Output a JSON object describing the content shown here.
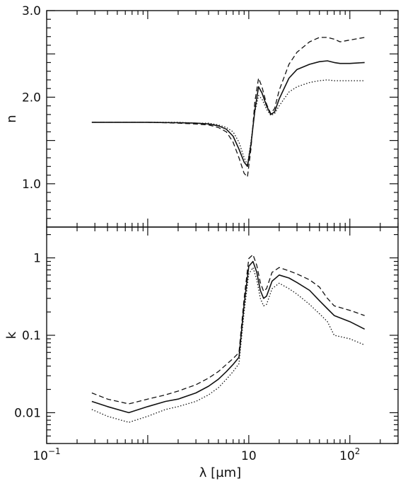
{
  "chart_data": [
    {
      "type": "line",
      "xscale": "log",
      "xlim": [
        0.1,
        300
      ],
      "ylim": [
        0.5,
        3.0
      ],
      "ylabel": "n",
      "yticks": [
        {
          "value": 1.0,
          "label": "1.0"
        },
        {
          "value": 2.0,
          "label": "2.0"
        },
        {
          "value": 3.0,
          "label": "3.0"
        }
      ],
      "series": [
        {
          "style": "solid",
          "x": [
            0.28,
            1,
            2,
            3,
            4,
            5,
            6,
            7,
            8,
            9,
            9.7,
            10.5,
            11.5,
            12.5,
            13.5,
            15,
            16.5,
            18,
            20,
            25,
            30,
            40,
            50,
            60,
            70,
            80,
            100,
            140
          ],
          "y": [
            1.71,
            1.71,
            1.705,
            1.7,
            1.69,
            1.67,
            1.63,
            1.55,
            1.4,
            1.25,
            1.2,
            1.45,
            1.85,
            2.12,
            2.05,
            1.9,
            1.8,
            1.83,
            1.98,
            2.22,
            2.32,
            2.38,
            2.41,
            2.42,
            2.4,
            2.39,
            2.39,
            2.4
          ]
        },
        {
          "style": "dashed",
          "x": [
            0.28,
            1,
            2,
            3,
            4,
            5,
            6,
            7,
            8,
            9,
            9.7,
            10.5,
            11.5,
            12.5,
            13.5,
            15,
            16.5,
            18,
            20,
            25,
            30,
            40,
            50,
            60,
            70,
            80,
            100,
            140
          ],
          "y": [
            1.71,
            1.71,
            1.7,
            1.69,
            1.68,
            1.65,
            1.6,
            1.48,
            1.3,
            1.12,
            1.08,
            1.4,
            1.95,
            2.22,
            2.12,
            1.92,
            1.81,
            1.87,
            2.08,
            2.38,
            2.52,
            2.64,
            2.69,
            2.69,
            2.67,
            2.64,
            2.66,
            2.69
          ]
        },
        {
          "style": "dotted",
          "x": [
            0.28,
            1,
            2,
            3,
            4,
            5,
            6,
            7,
            8,
            9,
            9.7,
            10.5,
            11.5,
            12.5,
            13.5,
            15,
            16.5,
            18,
            20,
            25,
            30,
            40,
            50,
            60,
            70,
            80,
            100,
            140
          ],
          "y": [
            1.71,
            1.71,
            1.71,
            1.7,
            1.7,
            1.68,
            1.65,
            1.6,
            1.48,
            1.3,
            1.22,
            1.48,
            1.83,
            2.02,
            1.98,
            1.86,
            1.79,
            1.81,
            1.9,
            2.06,
            2.12,
            2.17,
            2.19,
            2.2,
            2.19,
            2.19,
            2.19,
            2.19
          ]
        }
      ]
    },
    {
      "type": "line",
      "xscale": "log",
      "yscale": "log",
      "xlim": [
        0.1,
        300
      ],
      "ylim": [
        0.004,
        2.5
      ],
      "xlabel": "λ [µm]",
      "ylabel": "k",
      "xticks": [
        {
          "value": 0.1,
          "base": "10",
          "exp": "−1"
        },
        {
          "value": 10,
          "base": "10",
          "exp": ""
        },
        {
          "value": 100,
          "base": "10",
          "exp": "2"
        }
      ],
      "yticks": [
        {
          "value": 0.01,
          "label": "0.01"
        },
        {
          "value": 0.1,
          "label": "0.1"
        },
        {
          "value": 1,
          "label": "1"
        }
      ],
      "series": [
        {
          "style": "solid",
          "x": [
            0.28,
            0.4,
            0.65,
            1,
            1.5,
            2,
            3,
            4,
            5,
            6,
            7,
            8,
            9,
            10,
            11,
            12,
            13,
            14,
            15,
            17,
            20,
            25,
            30,
            40,
            50,
            60,
            70,
            100,
            140
          ],
          "y": [
            0.014,
            0.012,
            0.01,
            0.012,
            0.014,
            0.015,
            0.018,
            0.022,
            0.027,
            0.034,
            0.042,
            0.052,
            0.25,
            0.78,
            0.9,
            0.65,
            0.38,
            0.3,
            0.32,
            0.5,
            0.6,
            0.55,
            0.48,
            0.38,
            0.28,
            0.22,
            0.18,
            0.15,
            0.12
          ]
        },
        {
          "style": "dashed",
          "x": [
            0.28,
            0.4,
            0.65,
            1,
            1.5,
            2,
            3,
            4,
            5,
            6,
            7,
            8,
            9,
            10,
            11,
            12,
            13,
            14,
            15,
            17,
            20,
            25,
            30,
            40,
            50,
            60,
            70,
            100,
            140
          ],
          "y": [
            0.018,
            0.015,
            0.013,
            0.015,
            0.017,
            0.019,
            0.023,
            0.028,
            0.034,
            0.042,
            0.05,
            0.06,
            0.3,
            0.98,
            1.1,
            0.8,
            0.48,
            0.37,
            0.4,
            0.65,
            0.75,
            0.68,
            0.62,
            0.52,
            0.42,
            0.3,
            0.24,
            0.21,
            0.18
          ]
        },
        {
          "style": "dotted",
          "x": [
            0.28,
            0.4,
            0.65,
            1,
            1.5,
            2,
            3,
            4,
            5,
            6,
            7,
            8,
            9,
            10,
            11,
            12,
            13,
            14,
            15,
            17,
            20,
            25,
            30,
            40,
            50,
            60,
            70,
            100,
            140
          ],
          "y": [
            0.011,
            0.009,
            0.0075,
            0.009,
            0.011,
            0.012,
            0.014,
            0.017,
            0.021,
            0.027,
            0.034,
            0.043,
            0.2,
            0.62,
            0.75,
            0.52,
            0.3,
            0.24,
            0.25,
            0.4,
            0.47,
            0.4,
            0.34,
            0.25,
            0.19,
            0.15,
            0.1,
            0.09,
            0.075
          ]
        }
      ]
    }
  ]
}
